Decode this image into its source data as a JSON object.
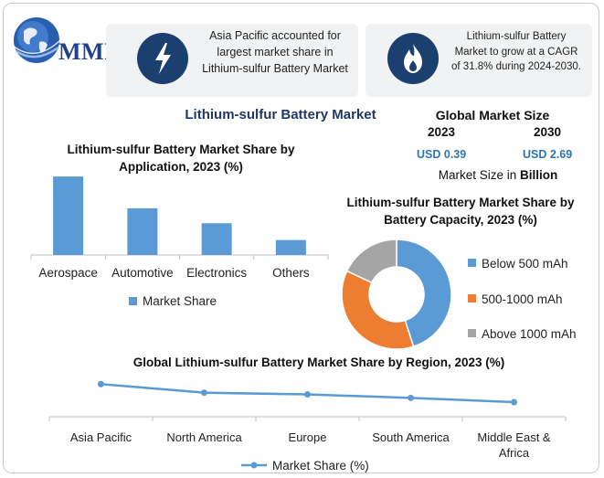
{
  "brand": {
    "logo_text": "MMR"
  },
  "callouts": [
    {
      "icon": "lightning-bolt-icon",
      "text": "Asia Pacific accounted for largest market share in Lithium-sulfur Battery Market"
    },
    {
      "icon": "flame-icon",
      "text": "Lithium-sulfur Battery Market to grow at a CAGR of 31.8% during 2024-2030."
    }
  ],
  "main_title": "Lithium-sulfur Battery Market",
  "market_size": {
    "title": "Global Market Size",
    "year_start": "2023",
    "year_end": "2030",
    "value_start": "USD 0.39",
    "value_end": "USD 2.69",
    "unit_prefix": "Market Size in ",
    "unit_bold": "Billion"
  },
  "colors": {
    "blue": "#5b9bd5",
    "orange": "#ed7d31",
    "gray": "#a5a5a5",
    "navy": "#1b3f6e",
    "title_navy": "#1f3864"
  },
  "chart_data": [
    {
      "type": "bar",
      "title": "Lithium-sulfur Battery Market Share by Application, 2023 (%)",
      "categories": [
        "Aerospace",
        "Automotive",
        "Electronics",
        "Others"
      ],
      "series": [
        {
          "name": "Market Share",
          "values": [
            42,
            25,
            17,
            8
          ]
        }
      ],
      "ylim": [
        0,
        45
      ],
      "grid": false,
      "legend": "bottom"
    },
    {
      "type": "pie",
      "title": "Lithium-sulfur Battery Market Share by Battery Capacity, 2023 (%)",
      "labels": [
        "Below 500 mAh",
        "500-1000 mAh",
        "Above 1000 mAh"
      ],
      "values": [
        45,
        37,
        18
      ],
      "colors": [
        "#5b9bd5",
        "#ed7d31",
        "#a5a5a5"
      ],
      "donut": true,
      "legend": "right"
    },
    {
      "type": "line",
      "title": "Global Lithium-sulfur Battery Market Share by Region, 2023 (%)",
      "categories": [
        "Asia Pacific",
        "North America",
        "Europe",
        "South America",
        "Middle East & Africa"
      ],
      "series": [
        {
          "name": "Market Share (%)",
          "values": [
            38,
            28,
            26,
            22,
            17
          ]
        }
      ],
      "ylim": [
        0,
        50
      ],
      "grid": false,
      "legend": "bottom"
    }
  ]
}
